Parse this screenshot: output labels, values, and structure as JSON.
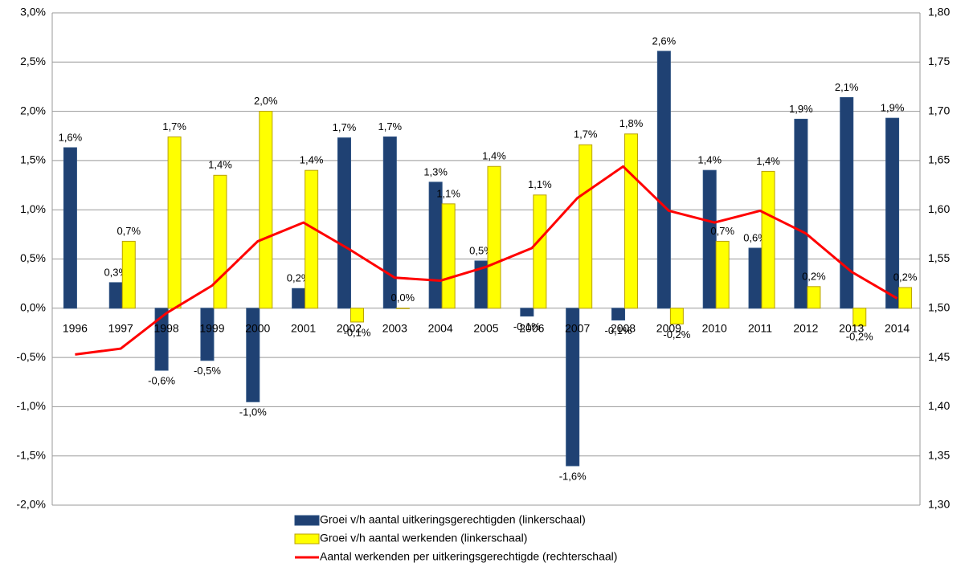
{
  "chart_data": {
    "type": "bar-line",
    "categories": [
      "1996",
      "1997",
      "1998",
      "1999",
      "2000",
      "2001",
      "2002",
      "2003",
      "2004",
      "2005",
      "2006",
      "2007",
      "2008",
      "2009",
      "2010",
      "2011",
      "2012",
      "2013",
      "2014"
    ],
    "series": [
      {
        "name": "Groei v/h aantal uitkeringsgerechtigden (linkerschaal)",
        "type": "bar",
        "color": "#1f4173",
        "values": [
          1.63,
          0.26,
          -0.63,
          -0.53,
          -0.95,
          0.2,
          1.73,
          1.74,
          1.28,
          0.48,
          -0.08,
          -1.6,
          -0.12,
          2.61,
          1.4,
          0.61,
          1.92,
          2.14,
          1.93
        ],
        "value_labels": [
          "1,6%",
          "0,3%",
          "-0,6%",
          "-0,5%",
          "-1,0%",
          "0,2%",
          "1,7%",
          "1,7%",
          "1,3%",
          "0,5%",
          "-0,1%",
          "-1,6%",
          "-0,1%",
          "2,6%",
          "1,4%",
          "0,6%",
          "1,9%",
          "2,1%",
          "1,9%"
        ]
      },
      {
        "name": "Groei v/h aantal werkenden (linkerschaal)",
        "type": "bar",
        "color": "#ffff00",
        "values": [
          null,
          0.68,
          1.74,
          1.35,
          2.0,
          1.4,
          -0.14,
          0.0,
          1.06,
          1.44,
          1.15,
          1.66,
          1.77,
          -0.16,
          0.68,
          1.39,
          0.22,
          -0.18,
          0.21
        ],
        "value_labels": [
          null,
          "0,7%",
          "1,7%",
          "1,4%",
          "2,0%",
          "1,4%",
          "-0,1%",
          "0,0%",
          "1,1%",
          "1,4%",
          "1,1%",
          "1,7%",
          "1,8%",
          "-0,2%",
          "0,7%",
          "1,4%",
          "0,2%",
          "-0,2%",
          "0,2%"
        ]
      },
      {
        "name": "Aantal werkenden per uitkeringsgerechtigde (rechterschaal)",
        "type": "line",
        "axis": "y2",
        "color": "#ff0000",
        "values": [
          1.453,
          1.459,
          1.495,
          1.523,
          1.568,
          1.587,
          1.56,
          1.531,
          1.528,
          1.542,
          1.561,
          1.612,
          1.644,
          1.599,
          1.587,
          1.599,
          1.576,
          1.537,
          1.51
        ]
      }
    ],
    "ylim": [
      -2,
      3
    ],
    "yticks": [
      {
        "value": -2,
        "label": "-2,0%"
      },
      {
        "value": -1.5,
        "label": "-1,5%"
      },
      {
        "value": -1,
        "label": "-1,0%"
      },
      {
        "value": -0.5,
        "label": "-0,5%"
      },
      {
        "value": 0,
        "label": "0,0%"
      },
      {
        "value": 0.5,
        "label": "0,5%"
      },
      {
        "value": 1,
        "label": "1,0%"
      },
      {
        "value": 1.5,
        "label": "1,5%"
      },
      {
        "value": 2,
        "label": "2,0%"
      },
      {
        "value": 2.5,
        "label": "2,5%"
      },
      {
        "value": 3,
        "label": "3,0%"
      }
    ],
    "y2lim": [
      1.3,
      1.8
    ],
    "y2ticks": [
      {
        "value": 1.3,
        "label": "1,30"
      },
      {
        "value": 1.35,
        "label": "1,35"
      },
      {
        "value": 1.4,
        "label": "1,40"
      },
      {
        "value": 1.45,
        "label": "1,45"
      },
      {
        "value": 1.5,
        "label": "1,50"
      },
      {
        "value": 1.55,
        "label": "1,55"
      },
      {
        "value": 1.6,
        "label": "1,60"
      },
      {
        "value": 1.65,
        "label": "1,65"
      },
      {
        "value": 1.7,
        "label": "1,70"
      },
      {
        "value": 1.75,
        "label": "1,75"
      },
      {
        "value": 1.8,
        "label": "1,80"
      }
    ],
    "grid": true,
    "legend": "bottom"
  }
}
